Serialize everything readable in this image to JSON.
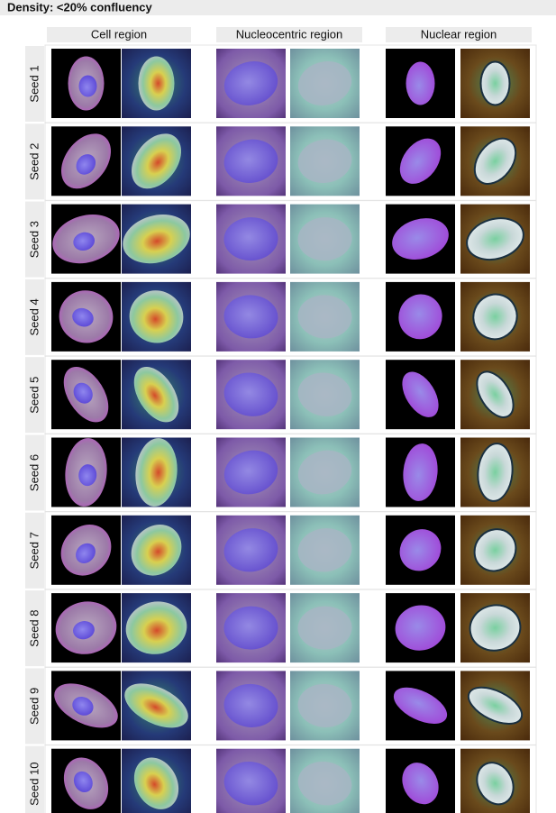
{
  "title": "Density: <20% confluency",
  "columns": [
    "Cell region",
    "Nucleocentric region",
    "Nuclear region"
  ],
  "rows": [
    "Seed 1",
    "Seed 2",
    "Seed 3",
    "Seed 4",
    "Seed 5",
    "Seed 6",
    "Seed 7",
    "Seed 8",
    "Seed 9",
    "Seed 10"
  ]
}
